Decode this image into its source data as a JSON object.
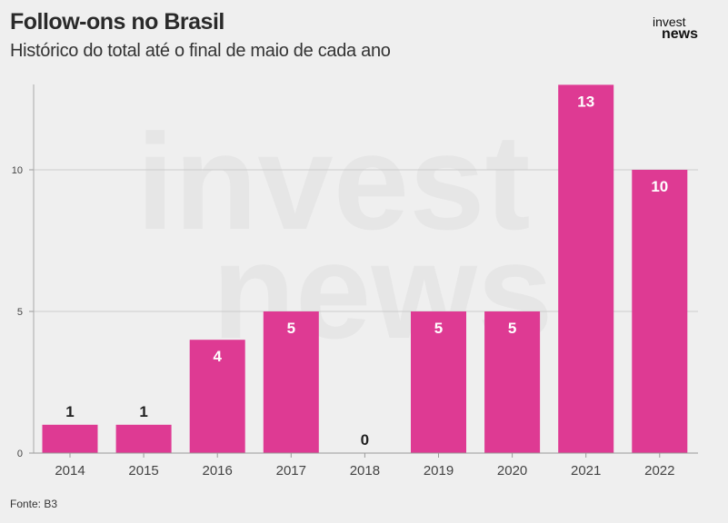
{
  "header": {
    "title": "Follow-ons no Brasil",
    "subtitle": "Histórico do total até o final de maio de cada ano",
    "logo": {
      "line1": "invest",
      "line2": "news"
    }
  },
  "footer": {
    "source": "Fonte: B3"
  },
  "colors": {
    "bar": "#de3a93",
    "grid": "#cccccc"
  },
  "chart_data": {
    "type": "bar",
    "title": "Follow-ons no Brasil",
    "subtitle": "Histórico do total até o final de maio de cada ano",
    "categories": [
      "2014",
      "2015",
      "2016",
      "2017",
      "2018",
      "2019",
      "2020",
      "2021",
      "2022"
    ],
    "values": [
      1,
      1,
      4,
      5,
      0,
      5,
      5,
      13,
      10
    ],
    "ylim": [
      0,
      13
    ],
    "yticks": [
      0,
      5,
      10
    ],
    "grid": true,
    "data_labels": true
  }
}
